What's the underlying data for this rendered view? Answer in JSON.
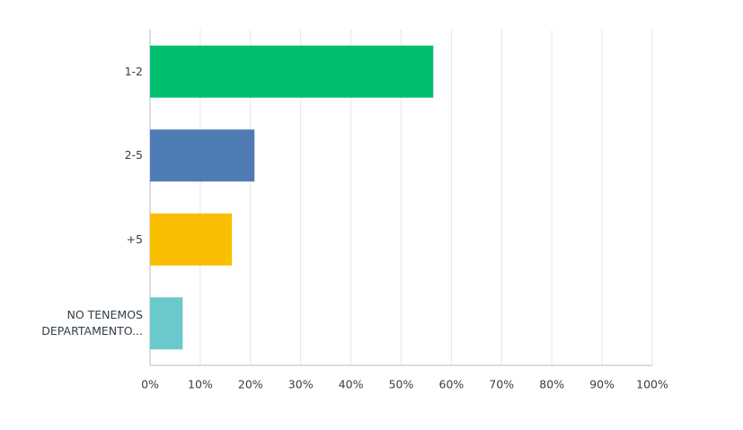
{
  "chart_data": {
    "type": "hbar",
    "categories": [
      "1-2",
      "2-5",
      "+5",
      "NO TENEMOS DEPARTAMENTO..."
    ],
    "values": [
      56.4,
      20.8,
      16.3,
      6.5
    ],
    "colors": [
      "#00bf6f",
      "#507cb6",
      "#f9be00",
      "#6bc8cd"
    ],
    "xlim": [
      0,
      100
    ],
    "xticks": [
      {
        "value": 0,
        "label": "0%"
      },
      {
        "value": 10,
        "label": "10%"
      },
      {
        "value": 20,
        "label": "20%"
      },
      {
        "value": 30,
        "label": "30%"
      },
      {
        "value": 40,
        "label": "40%"
      },
      {
        "value": 50,
        "label": "50%"
      },
      {
        "value": 60,
        "label": "60%"
      },
      {
        "value": 70,
        "label": "70%"
      },
      {
        "value": 80,
        "label": "80%"
      },
      {
        "value": 90,
        "label": "90%"
      },
      {
        "value": 100,
        "label": "100%"
      }
    ],
    "grid": true
  }
}
